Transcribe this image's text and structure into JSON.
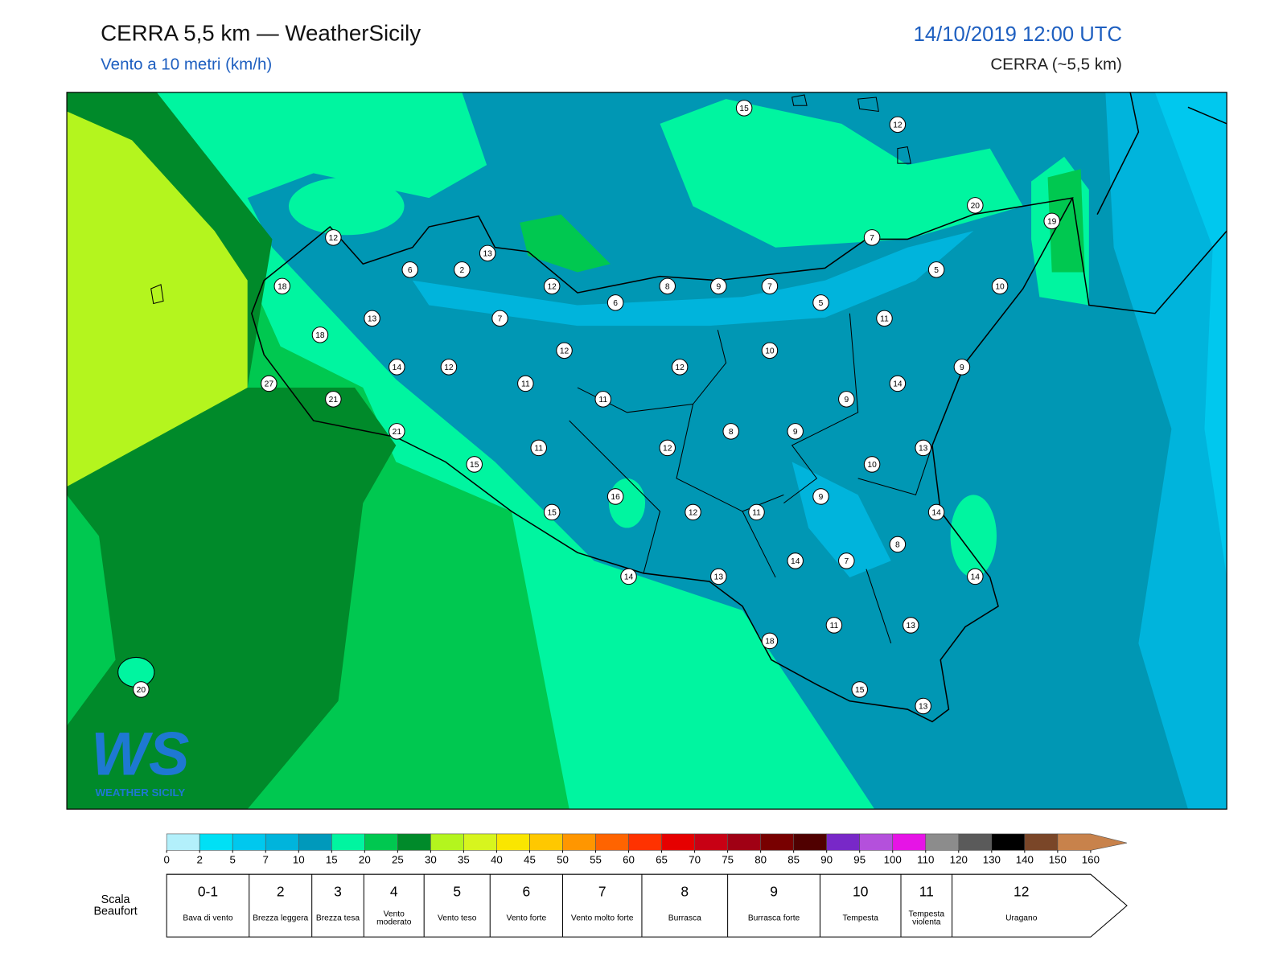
{
  "header": {
    "title": "CERRA 5,5 km — WeatherSicily",
    "subtitle": "Vento a 10 metri (km/h)",
    "datetime": "14/10/2019 12:00 UTC",
    "model": "CERRA (~5,5 km)"
  },
  "stations": [
    15,
    12,
    20,
    19,
    12,
    7,
    13,
    6,
    2,
    5,
    18,
    12,
    8,
    9,
    7,
    10,
    6,
    5,
    13,
    7,
    11,
    18,
    10,
    14,
    12,
    12,
    12,
    9,
    27,
    11,
    14,
    21,
    11,
    9,
    21,
    8,
    9,
    11,
    12,
    13,
    15,
    10,
    9,
    16,
    15,
    12,
    11,
    14,
    8,
    14,
    7,
    14,
    13,
    14,
    11,
    13,
    18,
    20,
    15,
    13
  ],
  "colorbar": {
    "ticks": [
      0,
      2,
      5,
      7,
      10,
      15,
      20,
      25,
      30,
      35,
      40,
      45,
      50,
      55,
      60,
      65,
      70,
      75,
      80,
      85,
      90,
      95,
      100,
      110,
      120,
      130,
      140,
      150,
      160
    ],
    "colors": [
      "#b3f0fb",
      "#00e0f5",
      "#00c8ee",
      "#00b4dc",
      "#0099bb",
      "#00f5a0",
      "#00c850",
      "#008a2a",
      "#b4f51e",
      "#d7f51e",
      "#fae600",
      "#ffc800",
      "#ff9600",
      "#ff6400",
      "#ff3200",
      "#e60000",
      "#c80014",
      "#a00014",
      "#780000",
      "#500000",
      "#7828c8",
      "#b450dc",
      "#e614e6",
      "#8c8c8c",
      "#5a5a5a",
      "#000000",
      "#7a4628",
      "#c8824b"
    ]
  },
  "beaufort": {
    "label": "Scala Beaufort",
    "levels": [
      {
        "force": "0-1",
        "name": "Bava di vento"
      },
      {
        "force": "2",
        "name": "Brezza leggera"
      },
      {
        "force": "3",
        "name": "Brezza tesa"
      },
      {
        "force": "4",
        "name": "Vento moderato"
      },
      {
        "force": "5",
        "name": "Vento teso"
      },
      {
        "force": "6",
        "name": "Vento forte"
      },
      {
        "force": "7",
        "name": "Vento molto forte"
      },
      {
        "force": "8",
        "name": "Burrasca"
      },
      {
        "force": "9",
        "name": "Burrasca forte"
      },
      {
        "force": "10",
        "name": "Tempesta"
      },
      {
        "force": "11",
        "name": "Tempesta violenta"
      },
      {
        "force": "12",
        "name": "Uragano"
      }
    ]
  },
  "logo": {
    "mark": "WS",
    "name": "WEATHER SICILY"
  }
}
